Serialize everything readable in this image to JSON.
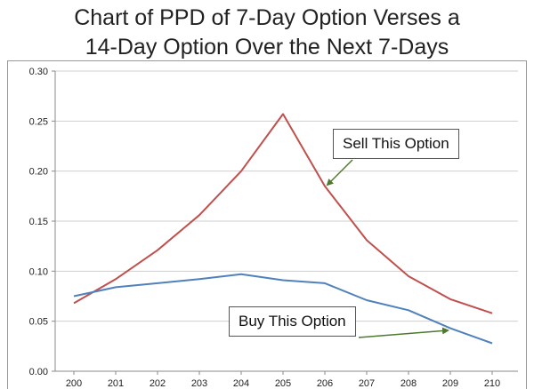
{
  "colors": {
    "series_7day": "#c0504d",
    "series_14day": "#4f81bd",
    "arrow": "#4e7a2f",
    "grid": "#cfcfcf"
  },
  "chart_data": {
    "type": "line",
    "title": [
      "Chart of PPD of 7-Day Option Verses a",
      "14-Day Option Over the Next 7-Days"
    ],
    "ylim": [
      0,
      0.3
    ],
    "yticks": [
      "0.00",
      "0.05",
      "0.10",
      "0.15",
      "0.20",
      "0.25",
      "0.30"
    ],
    "grid": "horizontal",
    "legend": "none",
    "x": [
      200,
      201,
      202,
      203,
      204,
      205,
      206,
      207,
      208,
      209,
      210
    ],
    "series": [
      {
        "color": "#c0504d",
        "values": [
          0.068,
          0.092,
          0.121,
          0.156,
          0.2,
          0.257,
          0.185,
          0.131,
          0.095,
          0.072,
          0.058
        ]
      },
      {
        "color": "#4f81bd",
        "values": [
          0.075,
          0.084,
          0.088,
          0.092,
          0.097,
          0.091,
          0.088,
          0.071,
          0.061,
          0.043,
          0.028
        ]
      }
    ],
    "annotations": [
      {
        "text": "Sell This Option",
        "points_to_series": 0
      },
      {
        "text": "Buy This Option",
        "points_to_series": 1
      }
    ]
  }
}
